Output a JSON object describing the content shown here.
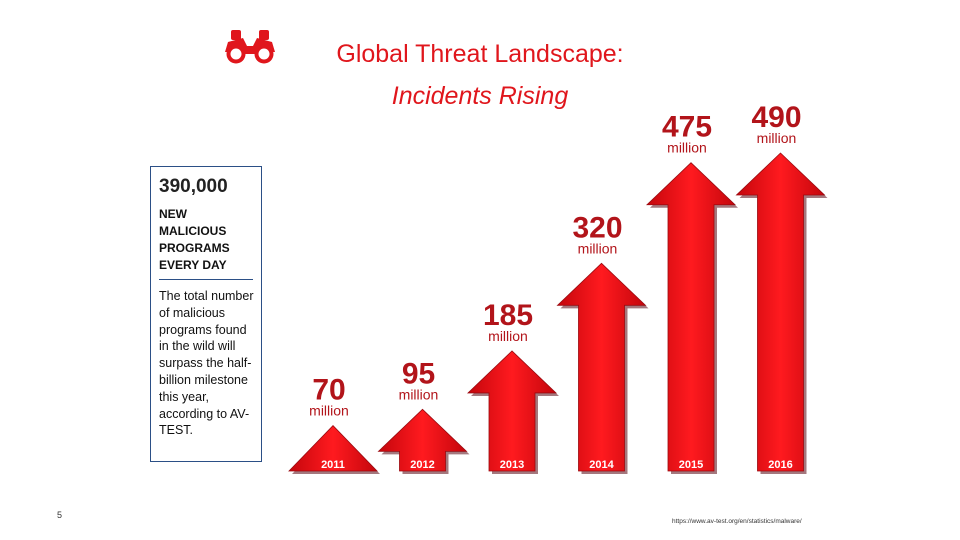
{
  "title": "Global Threat Landscape:",
  "subtitle": "Incidents Rising",
  "icon": "binoculars-icon",
  "accent_color": "#e0161c",
  "label_color": "#b2141a",
  "stat": {
    "number": "390,000",
    "caption": "NEW MALICIOUS PROGRAMS EVERY DAY",
    "description": "The total number of malicious programs found in the wild will surpass the half-billion milestone this year, according to AV-TEST."
  },
  "page_number": "5",
  "source": "https://www.av-test.org/en/statistics/malware/",
  "chart_data": {
    "type": "bar",
    "categories": [
      "2011",
      "2012",
      "2013",
      "2014",
      "2015",
      "2016"
    ],
    "values": [
      70,
      95,
      185,
      320,
      475,
      490
    ],
    "value_labels": [
      "70",
      "95",
      "185",
      "320",
      "475",
      "490"
    ],
    "unit": "million",
    "ylim": [
      0,
      490
    ],
    "title": "",
    "xlabel": "",
    "ylabel": "",
    "grid": false,
    "legend": false
  }
}
